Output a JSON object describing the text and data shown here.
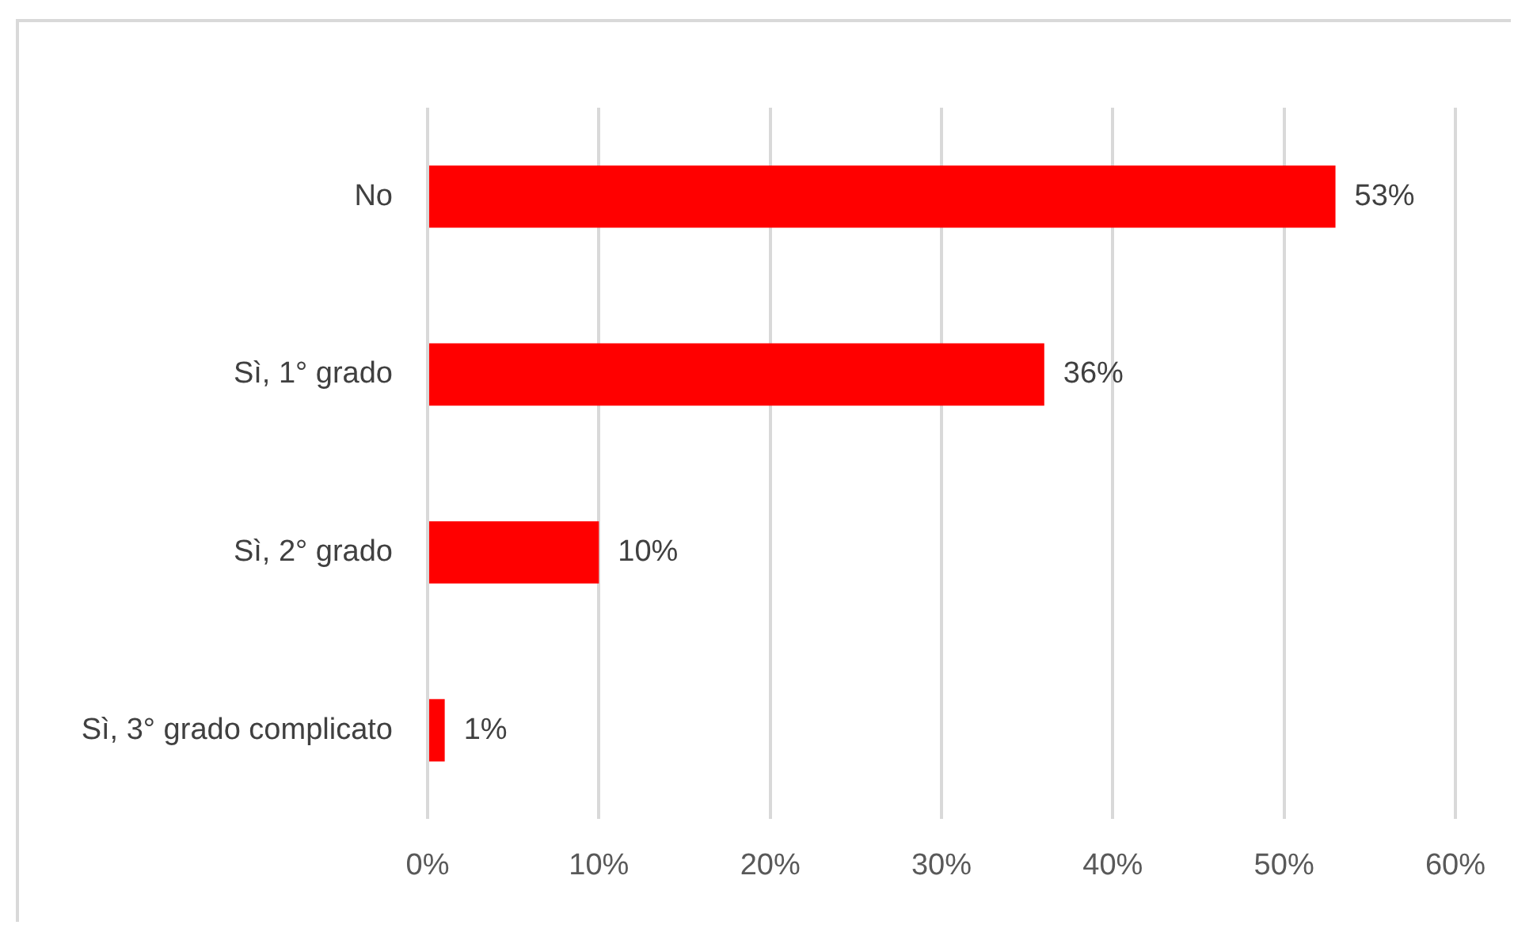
{
  "chart_data": {
    "type": "bar",
    "orientation": "horizontal",
    "categories": [
      "No",
      "Sì, 1° grado",
      "Sì, 2° grado",
      "Sì, 3° grado complicato"
    ],
    "values": [
      53,
      36,
      10,
      1
    ],
    "color": "#ff0000",
    "value_labels": [
      "53%",
      "36%",
      "10%",
      "1%"
    ],
    "xlim": [
      0,
      60
    ],
    "xticks": [
      {
        "value": 0,
        "label": "0%"
      },
      {
        "value": 10,
        "label": "10%"
      },
      {
        "value": 20,
        "label": "20%"
      },
      {
        "value": 30,
        "label": "30%"
      },
      {
        "value": 40,
        "label": "40%"
      },
      {
        "value": 50,
        "label": "50%"
      },
      {
        "value": 60,
        "label": "60%"
      }
    ],
    "grid": "x",
    "legend": false
  }
}
